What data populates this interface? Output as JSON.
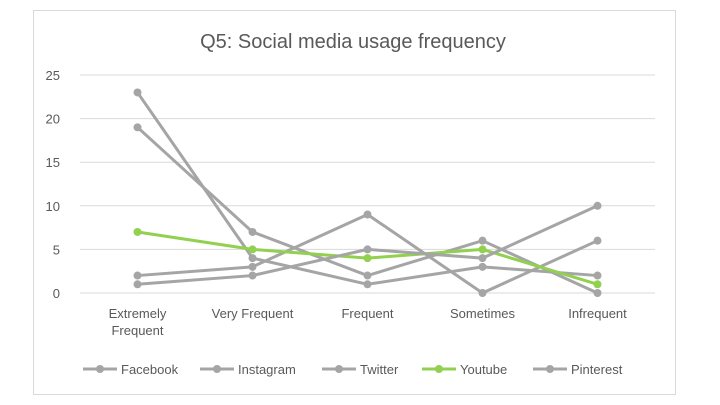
{
  "chart_data": {
    "type": "line",
    "title": "Q5: Social media usage frequency",
    "categories": [
      [
        "Extremely",
        "Frequent"
      ],
      [
        "Very Frequent"
      ],
      [
        "Frequent"
      ],
      [
        "Sometimes"
      ],
      [
        "Infrequent"
      ]
    ],
    "ylim": [
      0,
      25
    ],
    "yticks": [
      0,
      5,
      10,
      15,
      20,
      25
    ],
    "grid": true,
    "legend_position": "bottom",
    "series": [
      {
        "name": "Facebook",
        "color": "#a5a5a5",
        "values": [
          23,
          4,
          1,
          3,
          2
        ]
      },
      {
        "name": "Instagram",
        "color": "#a5a5a5",
        "values": [
          19,
          7,
          2,
          6,
          0
        ]
      },
      {
        "name": "Twitter",
        "color": "#a5a5a5",
        "values": [
          2,
          3,
          9,
          0,
          6
        ]
      },
      {
        "name": "Youtube",
        "color": "#92d050",
        "values": [
          7,
          5,
          4,
          5,
          1
        ]
      },
      {
        "name": "Pinterest",
        "color": "#a5a5a5",
        "values": [
          1,
          2,
          5,
          4,
          10
        ]
      }
    ]
  }
}
